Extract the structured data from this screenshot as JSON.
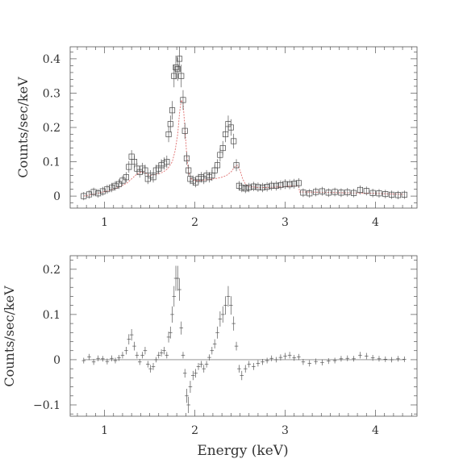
{
  "chart_data": [
    {
      "type": "scatter",
      "xlabel": "",
      "ylabel": "Counts/sec/keV",
      "xlim": [
        0.62,
        4.46
      ],
      "ylim": [
        -0.035,
        0.435
      ],
      "x_ticks": [
        1,
        2,
        3,
        4
      ],
      "y_ticks": [
        0,
        0.1,
        0.2,
        0.3,
        0.4
      ],
      "x_tick_labels": [
        "1",
        "2",
        "3",
        "4"
      ],
      "y_tick_labels": [
        "0",
        "0.1",
        "0.2",
        "0.3",
        "0.4"
      ],
      "colors": {
        "data": "#444444",
        "model": "#e07070"
      },
      "series": [
        {
          "role": "data",
          "marker": "open-square",
          "x": [
            0.77,
            0.83,
            0.88,
            0.93,
            0.98,
            1.03,
            1.08,
            1.12,
            1.16,
            1.2,
            1.24,
            1.27,
            1.3,
            1.33,
            1.36,
            1.39,
            1.42,
            1.45,
            1.48,
            1.51,
            1.54,
            1.57,
            1.6,
            1.63,
            1.66,
            1.69,
            1.71,
            1.73,
            1.75,
            1.77,
            1.79,
            1.81,
            1.83,
            1.85,
            1.87,
            1.89,
            1.91,
            1.93,
            1.95,
            1.98,
            2.01,
            2.04,
            2.07,
            2.1,
            2.13,
            2.16,
            2.19,
            2.22,
            2.25,
            2.28,
            2.31,
            2.34,
            2.37,
            2.4,
            2.43,
            2.46,
            2.49,
            2.52,
            2.56,
            2.6,
            2.65,
            2.7,
            2.75,
            2.8,
            2.85,
            2.9,
            2.95,
            3.0,
            3.05,
            3.1,
            3.15,
            3.2,
            3.27,
            3.34,
            3.41,
            3.48,
            3.55,
            3.62,
            3.69,
            3.76,
            3.83,
            3.9,
            3.97,
            4.04,
            4.11,
            4.18,
            4.25,
            4.32
          ],
          "y": [
            0.0,
            0.005,
            0.012,
            0.008,
            0.014,
            0.02,
            0.025,
            0.03,
            0.035,
            0.045,
            0.055,
            0.085,
            0.115,
            0.1,
            0.08,
            0.07,
            0.08,
            0.075,
            0.05,
            0.06,
            0.055,
            0.075,
            0.08,
            0.09,
            0.095,
            0.1,
            0.18,
            0.21,
            0.25,
            0.35,
            0.375,
            0.37,
            0.4,
            0.35,
            0.28,
            0.19,
            0.11,
            0.075,
            0.05,
            0.045,
            0.04,
            0.05,
            0.055,
            0.05,
            0.06,
            0.055,
            0.06,
            0.075,
            0.09,
            0.12,
            0.14,
            0.18,
            0.21,
            0.2,
            0.16,
            0.09,
            0.03,
            0.025,
            0.022,
            0.025,
            0.028,
            0.026,
            0.025,
            0.027,
            0.03,
            0.03,
            0.032,
            0.035,
            0.034,
            0.036,
            0.038,
            0.01,
            0.008,
            0.012,
            0.014,
            0.01,
            0.012,
            0.01,
            0.011,
            0.009,
            0.018,
            0.015,
            0.009,
            0.008,
            0.006,
            0.004,
            0.003,
            0.004
          ]
        },
        {
          "role": "model",
          "line": "dotted",
          "x": [
            0.77,
            0.85,
            0.95,
            1.05,
            1.15,
            1.25,
            1.3,
            1.35,
            1.4,
            1.45,
            1.5,
            1.55,
            1.6,
            1.65,
            1.7,
            1.75,
            1.78,
            1.81,
            1.83,
            1.85,
            1.87,
            1.89,
            1.91,
            1.93,
            1.96,
            2.0,
            2.05,
            2.1,
            2.15,
            2.2,
            2.25,
            2.3,
            2.35,
            2.4,
            2.44,
            2.47,
            2.5,
            2.53,
            2.56,
            2.6,
            2.7,
            2.8,
            2.9,
            3.0,
            3.1,
            3.15,
            3.16,
            3.2,
            3.4,
            3.6,
            3.8,
            4.0,
            4.2,
            4.32
          ],
          "y": [
            0.0,
            0.004,
            0.01,
            0.016,
            0.025,
            0.038,
            0.05,
            0.062,
            0.07,
            0.068,
            0.06,
            0.062,
            0.065,
            0.07,
            0.08,
            0.1,
            0.13,
            0.18,
            0.24,
            0.28,
            0.27,
            0.2,
            0.12,
            0.07,
            0.05,
            0.045,
            0.045,
            0.047,
            0.048,
            0.05,
            0.052,
            0.055,
            0.06,
            0.07,
            0.085,
            0.09,
            0.075,
            0.05,
            0.035,
            0.028,
            0.025,
            0.025,
            0.026,
            0.028,
            0.03,
            0.03,
            0.012,
            0.012,
            0.011,
            0.01,
            0.009,
            0.008,
            0.006,
            0.005
          ]
        }
      ]
    },
    {
      "type": "scatter",
      "xlabel": "Energy (keV)",
      "ylabel": "Counts/sec/keV",
      "xlim": [
        0.62,
        4.46
      ],
      "ylim": [
        -0.125,
        0.23
      ],
      "x_ticks": [
        1,
        2,
        3,
        4
      ],
      "y_ticks": [
        -0.1,
        0,
        0.1,
        0.2
      ],
      "x_tick_labels": [
        "1",
        "2",
        "3",
        "4"
      ],
      "y_tick_labels": [
        "−0.1",
        "0",
        "0.1",
        "0.2"
      ],
      "reference_line_y": 0,
      "series": [
        {
          "role": "residuals",
          "marker": "cross-with-error-bar",
          "x": [
            0.77,
            0.83,
            0.88,
            0.93,
            0.98,
            1.03,
            1.08,
            1.12,
            1.16,
            1.2,
            1.24,
            1.27,
            1.3,
            1.33,
            1.36,
            1.39,
            1.42,
            1.45,
            1.48,
            1.51,
            1.54,
            1.57,
            1.6,
            1.63,
            1.66,
            1.69,
            1.71,
            1.73,
            1.75,
            1.77,
            1.79,
            1.81,
            1.83,
            1.85,
            1.87,
            1.89,
            1.91,
            1.93,
            1.95,
            1.98,
            2.01,
            2.04,
            2.07,
            2.1,
            2.13,
            2.16,
            2.19,
            2.22,
            2.25,
            2.28,
            2.31,
            2.34,
            2.37,
            2.4,
            2.43,
            2.46,
            2.49,
            2.52,
            2.56,
            2.6,
            2.65,
            2.7,
            2.75,
            2.8,
            2.85,
            2.9,
            2.95,
            3.0,
            3.05,
            3.1,
            3.15,
            3.2,
            3.27,
            3.34,
            3.41,
            3.48,
            3.55,
            3.62,
            3.69,
            3.76,
            3.83,
            3.9,
            3.97,
            4.04,
            4.11,
            4.18,
            4.25,
            4.32
          ],
          "y": [
            -0.002,
            0.006,
            -0.005,
            0.003,
            0.002,
            -0.004,
            0.003,
            -0.002,
            0.004,
            0.01,
            0.02,
            0.045,
            0.055,
            0.03,
            0.01,
            -0.005,
            0.01,
            0.02,
            -0.01,
            -0.02,
            -0.015,
            0.0,
            0.01,
            0.015,
            0.02,
            0.01,
            0.05,
            0.06,
            0.1,
            0.14,
            0.18,
            0.18,
            0.155,
            0.07,
            0.01,
            -0.03,
            -0.08,
            -0.1,
            -0.06,
            -0.035,
            -0.03,
            -0.015,
            -0.01,
            -0.02,
            -0.01,
            0.005,
            0.02,
            0.035,
            0.06,
            0.09,
            0.1,
            0.12,
            0.14,
            0.12,
            0.08,
            0.03,
            -0.02,
            -0.035,
            -0.02,
            -0.01,
            -0.015,
            -0.008,
            -0.005,
            -0.002,
            0.003,
            0.0,
            0.005,
            0.008,
            0.01,
            0.004,
            0.006,
            -0.005,
            -0.008,
            -0.004,
            -0.006,
            -0.003,
            -0.002,
            0.002,
            0.003,
            0.002,
            0.01,
            0.008,
            0.004,
            0.002,
            0.001,
            0.0,
            0.002,
            0.001
          ]
        }
      ]
    }
  ]
}
